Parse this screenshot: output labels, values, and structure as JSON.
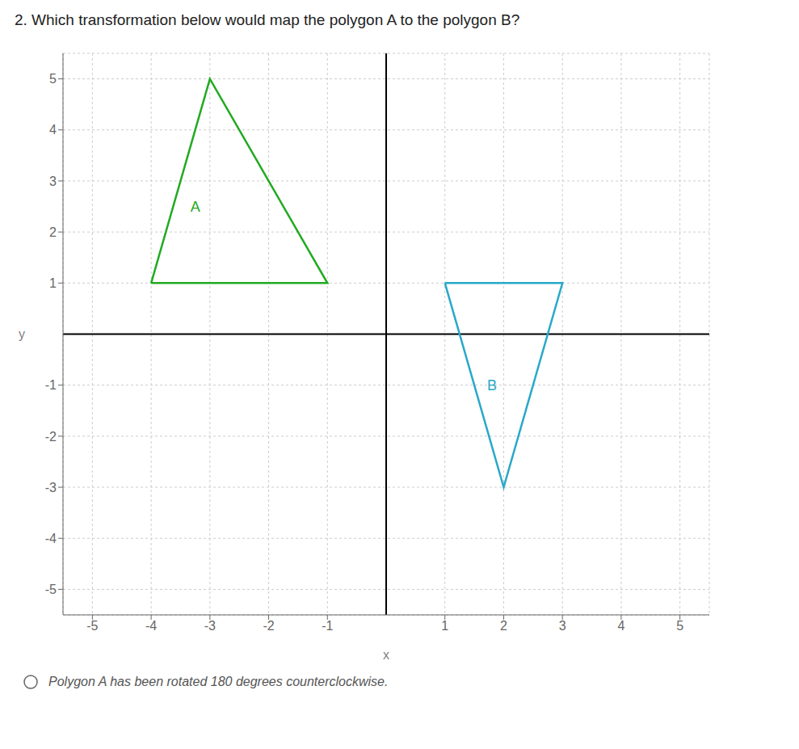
{
  "chart_data": {
    "type": "line",
    "title": "2. Which transformation below would map the polygon A to the polygon B?",
    "x_label": "x",
    "y_label": "y",
    "series": [
      {
        "color": "#22aa22",
        "x": [
          -4,
          -3,
          -1
        ],
        "values": [
          1,
          5,
          1
        ]
      },
      {
        "color": "#29a8c8",
        "x": [
          1,
          3,
          2
        ],
        "values": [
          1,
          1,
          -3
        ]
      }
    ],
    "annotations": [
      {
        "text": "A",
        "x": -3.4,
        "y": 2.5,
        "color": "#22aa22"
      },
      {
        "text": "B",
        "x": 1.65,
        "y": -1.0,
        "color": "#29a8c8"
      },
      {
        "text": "Polygon A has been rotated 180 degrees counterclockwise."
      }
    ],
    "xlim": [
      -5.5,
      5.5
    ],
    "ylim": [
      -5.5,
      5.5
    ],
    "xticks": [
      -5,
      -4,
      -3,
      -2,
      -1,
      1,
      2,
      3,
      4,
      5
    ],
    "yticks": [
      -5,
      -4,
      -3,
      -2,
      -1,
      1,
      2,
      3,
      4,
      5
    ],
    "grid": true
  }
}
